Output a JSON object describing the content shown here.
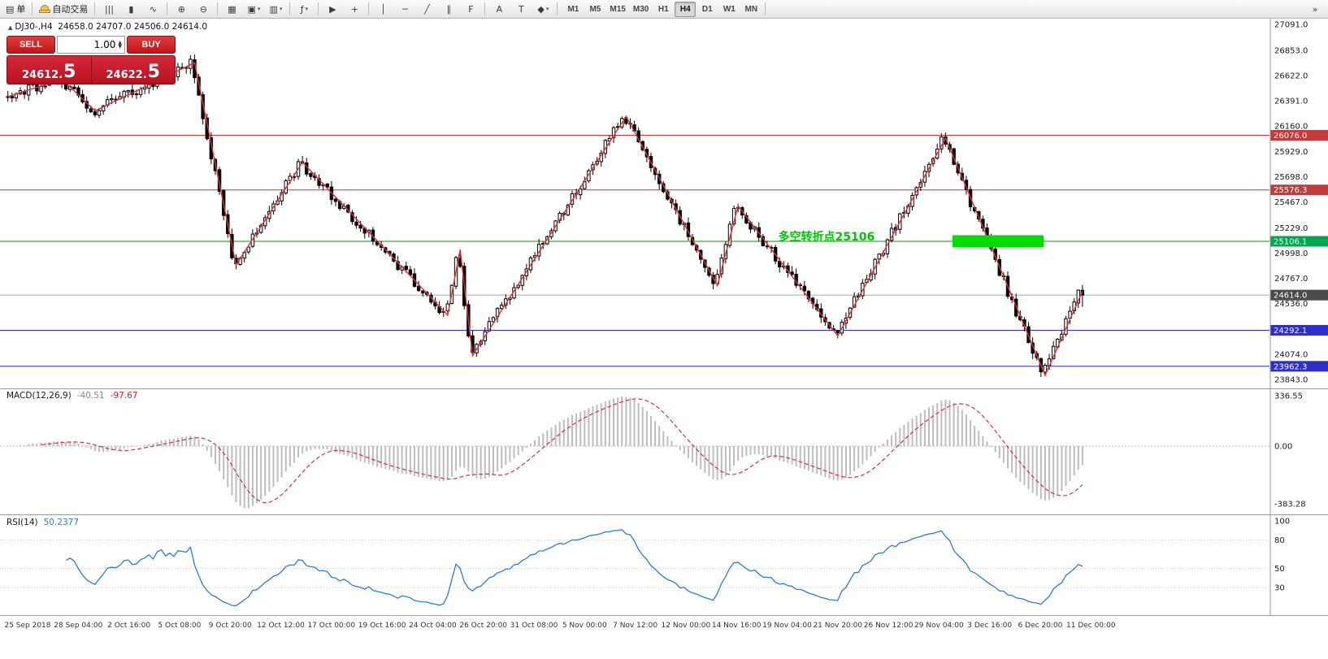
{
  "toolbar": {
    "active_timeframe": "H4",
    "groups": [
      {
        "items": [
          {
            "name": "new-order-button",
            "glyph": "▤",
            "label": "单"
          }
        ]
      },
      {
        "items": [
          {
            "name": "autotrade-button",
            "glyph": "hat",
            "label": "自动交易"
          }
        ]
      },
      {
        "items": [
          {
            "name": "bar-chart-icon",
            "glyph": "|||"
          },
          {
            "name": "candlestick-chart-icon",
            "glyph": "▮"
          },
          {
            "name": "line-chart-icon",
            "glyph": "∿"
          }
        ]
      },
      {
        "items": [
          {
            "name": "zoom-in-icon",
            "glyph": "⊕"
          },
          {
            "name": "zoom-out-icon",
            "glyph": "⊖"
          }
        ]
      },
      {
        "items": [
          {
            "name": "tile-windows-icon",
            "glyph": "▦"
          },
          {
            "name": "new-chart-icon",
            "glyph": "▣",
            "dropdown": true
          },
          {
            "name": "profiles-icon",
            "glyph": "▥",
            "dropdown": true
          }
        ]
      },
      {
        "items": [
          {
            "name": "indicators-icon",
            "glyph": "ƒ",
            "dropdown": true
          }
        ]
      },
      {
        "items": [
          {
            "name": "cursor-icon",
            "glyph": "▶"
          },
          {
            "name": "crosshair-icon",
            "glyph": "+"
          }
        ]
      },
      {
        "items": [
          {
            "name": "vertical-line-icon",
            "glyph": "│"
          },
          {
            "name": "horizontal-line-icon",
            "glyph": "─"
          },
          {
            "name": "trendline-icon",
            "glyph": "╱"
          },
          {
            "name": "channel-icon",
            "glyph": "∥"
          },
          {
            "name": "fibonacci-icon",
            "glyph": "F"
          }
        ]
      },
      {
        "items": [
          {
            "name": "text-icon",
            "glyph": "A"
          },
          {
            "name": "label-icon",
            "glyph": "T"
          },
          {
            "name": "shapes-icon",
            "glyph": "◆",
            "dropdown": true
          }
        ]
      },
      {
        "type": "timeframes",
        "items": [
          "M1",
          "M5",
          "M15",
          "M30",
          "H1",
          "H4",
          "D1",
          "W1",
          "MN"
        ]
      }
    ],
    "right_items": [
      {
        "name": "toolbar-overflow-icon",
        "glyph": "»"
      }
    ]
  },
  "symbol_line": {
    "collapse_glyph": "▲",
    "text": "DJ30-,H4  24658.0 24707.0 24506.0 24614.0"
  },
  "trade_panel": {
    "sell_label": "SELL",
    "buy_label": "BUY",
    "volume": "1.00",
    "sell_price": "24612.",
    "sell_price_big": "5",
    "buy_price": "24622.",
    "buy_price_big": "5"
  },
  "annotation": {
    "text": "多空转折点25106",
    "color": "#00c800",
    "bar": 186,
    "price": 25150
  },
  "macd": {
    "name": "MACD(12,26,9)",
    "value_main": "-40.51",
    "value_signal": "-97.67",
    "scale": [
      "336.55",
      "0.00",
      "-383.28"
    ]
  },
  "rsi": {
    "name": "RSI(14)",
    "value": "50.2377",
    "scale": [
      100,
      80,
      50,
      30
    ],
    "levels": [
      80,
      50,
      30
    ]
  },
  "price_axis": {
    "ticks": [
      27091,
      26853,
      26622,
      26391,
      26160,
      25929,
      25698,
      25467,
      25229,
      24998,
      24767,
      24536,
      24074,
      23843
    ]
  },
  "time_axis": {
    "labels": [
      "25 Sep 2018",
      "28 Sep 04:00",
      "2 Oct 16:00",
      "5 Oct 08:00",
      "9 Oct 20:00",
      "12 Oct 12:00",
      "17 Oct 00:00",
      "19 Oct 16:00",
      "24 Oct 04:00",
      "26 Oct 20:00",
      "31 Oct 08:00",
      "5 Nov 00:00",
      "7 Nov 12:00",
      "12 Nov 00:00",
      "14 Nov 16:00",
      "19 Nov 04:00",
      "21 Nov 20:00",
      "26 Nov 12:00",
      "29 Nov 04:00",
      "3 Dec 16:00",
      "6 Dec 20:00",
      "11 Dec 00:00"
    ]
  },
  "chart_data": {
    "type": "candlestick",
    "symbol": "DJ30-",
    "timeframe": "H4",
    "current_bar": {
      "open": 24658.0,
      "high": 24707.0,
      "low": 24506.0,
      "close": 24614.0
    },
    "visible_price_range": [
      23760,
      27106
    ],
    "bars": 260,
    "seed": 20181211,
    "zigzag_points": [
      [
        0,
        26430
      ],
      [
        13,
        26590
      ],
      [
        21,
        26300
      ],
      [
        45,
        26740
      ],
      [
        55,
        24890
      ],
      [
        71,
        25830
      ],
      [
        106,
        24430
      ],
      [
        109,
        25030
      ],
      [
        112,
        24060
      ],
      [
        149,
        26250
      ],
      [
        171,
        24700
      ],
      [
        176,
        25430
      ],
      [
        200,
        24240
      ],
      [
        226,
        26050
      ],
      [
        250,
        23880
      ],
      [
        259,
        24650
      ]
    ],
    "levels": [
      {
        "price": 26076.0,
        "label": "26076.0",
        "line_color": "#cc3333",
        "tag_color": "#c43b3b"
      },
      {
        "price": 25576.3,
        "label": "25576.3",
        "line_color": "#cc3333",
        "tag_color": "#c43b3b"
      },
      {
        "price": 25106.1,
        "label": "25106.1",
        "line_color": "#009900",
        "tag_color": "#00a651"
      },
      {
        "price": 24614.0,
        "label": "24614.0",
        "line_color": "#aaaaaa",
        "tag_color": "#4a4a4a",
        "current": true
      },
      {
        "price": 24292.1,
        "label": "24292.1",
        "line_color": "#2a2ae6",
        "tag_color": "#2e2ec8"
      },
      {
        "price": 23962.3,
        "label": "23962.3",
        "line_color": "#2a2ae6",
        "tag_color": "#2e2ec8"
      }
    ],
    "highlight_rect": {
      "bar_from": 228,
      "bar_to": 250,
      "price": 25106.1,
      "height": 15,
      "color": "#00dd00"
    },
    "indicators": [
      {
        "name": "MACD",
        "params": "12,26,9",
        "values": [
          -40.51,
          -97.67
        ],
        "scale_range": [
          -383.28,
          336.55
        ]
      },
      {
        "name": "RSI",
        "params": "14",
        "value": 50.2377,
        "scale_range": [
          0,
          100
        ]
      }
    ]
  }
}
